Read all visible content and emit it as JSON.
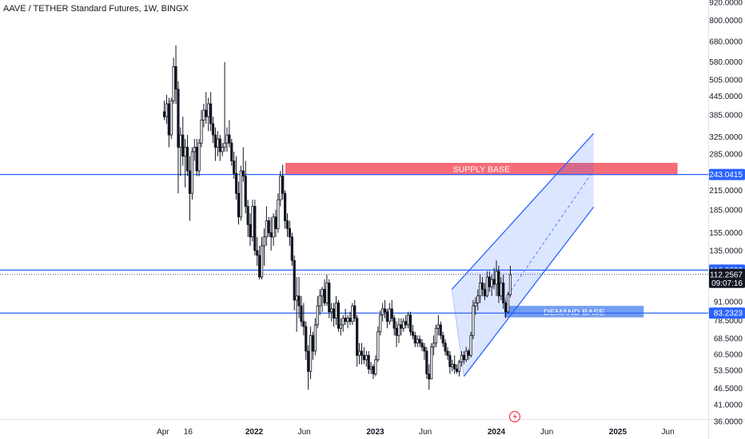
{
  "title": "AAVE / TETHER Standard Futures, 1W, BINGX",
  "chart_data": {
    "type": "candlestick",
    "symbol": "AAVE / TETHER Standard Futures",
    "interval": "1W",
    "exchange": "BINGX",
    "y_scale": "log",
    "ylim": [
      34,
      960
    ],
    "y_ticks": [
      "920.0000",
      "800.0000",
      "680.0000",
      "580.0000",
      "505.0000",
      "445.0000",
      "385.0000",
      "325.0000",
      "285.0000",
      "215.0000",
      "185.0000",
      "155.0000",
      "135.0000",
      "91.0000",
      "78.5000",
      "68.5000",
      "60.5000",
      "53.5000",
      "46.5000",
      "41.0000",
      "36.0000"
    ],
    "x_ticks": [
      "Apr",
      "16",
      "2022",
      "Jun",
      "2023",
      "Jun",
      "2024",
      "Jun",
      "2025",
      "Jun"
    ],
    "xlim": [
      "2021-03-10",
      "2025-07-20"
    ],
    "levels": [
      {
        "price": 243.0415,
        "label": "243.0415"
      },
      {
        "price": 116.0636,
        "label": "116.0636"
      },
      {
        "price": 83.2323,
        "label": "83.2323"
      }
    ],
    "last_price": {
      "price": 112.2567,
      "label": "112.2567",
      "countdown": "09:07:16"
    },
    "zones": [
      {
        "label": "SUPPLY BASE",
        "start": "2022-04-05",
        "end": "2025-06-30",
        "low": 242,
        "high": 266
      },
      {
        "label": "DEMAND BASE",
        "start": "2024-01-25",
        "end": "2025-03-20",
        "low": 80.5,
        "high": 88
      }
    ],
    "channel": {
      "upper": [
        [
          "2023-08-20",
          100
        ],
        [
          "2024-10-20",
          334
        ]
      ],
      "lower": [
        [
          "2023-09-25",
          51
        ],
        [
          "2024-10-20",
          189
        ]
      ],
      "middle": [
        [
          "2024-01-25",
          92
        ],
        [
          "2024-10-20",
          251
        ]
      ]
    },
    "candles": [
      {
        "t": "2021-04-05",
        "o": 395,
        "h": 430,
        "l": 370,
        "c": 380
      },
      {
        "t": "2021-04-12",
        "o": 380,
        "h": 450,
        "l": 360,
        "c": 420
      },
      {
        "t": "2021-04-19",
        "o": 420,
        "h": 440,
        "l": 300,
        "c": 330
      },
      {
        "t": "2021-04-26",
        "o": 330,
        "h": 440,
        "l": 320,
        "c": 430
      },
      {
        "t": "2021-05-03",
        "o": 430,
        "h": 600,
        "l": 420,
        "c": 560
      },
      {
        "t": "2021-05-10",
        "o": 560,
        "h": 660,
        "l": 420,
        "c": 470
      },
      {
        "t": "2021-05-17",
        "o": 470,
        "h": 500,
        "l": 210,
        "c": 300
      },
      {
        "t": "2021-05-24",
        "o": 300,
        "h": 350,
        "l": 240,
        "c": 330
      },
      {
        "t": "2021-05-31",
        "o": 330,
        "h": 380,
        "l": 260,
        "c": 280
      },
      {
        "t": "2021-06-07",
        "o": 280,
        "h": 320,
        "l": 220,
        "c": 300
      },
      {
        "t": "2021-06-14",
        "o": 300,
        "h": 330,
        "l": 240,
        "c": 250
      },
      {
        "t": "2021-06-21",
        "o": 250,
        "h": 280,
        "l": 170,
        "c": 210
      },
      {
        "t": "2021-06-28",
        "o": 210,
        "h": 300,
        "l": 200,
        "c": 290
      },
      {
        "t": "2021-07-05",
        "o": 290,
        "h": 320,
        "l": 270,
        "c": 300
      },
      {
        "t": "2021-07-12",
        "o": 300,
        "h": 320,
        "l": 240,
        "c": 250
      },
      {
        "t": "2021-07-19",
        "o": 250,
        "h": 320,
        "l": 240,
        "c": 310
      },
      {
        "t": "2021-07-26",
        "o": 310,
        "h": 400,
        "l": 300,
        "c": 370
      },
      {
        "t": "2021-08-02",
        "o": 370,
        "h": 420,
        "l": 350,
        "c": 400
      },
      {
        "t": "2021-08-09",
        "o": 400,
        "h": 460,
        "l": 360,
        "c": 380
      },
      {
        "t": "2021-08-16",
        "o": 380,
        "h": 440,
        "l": 340,
        "c": 420
      },
      {
        "t": "2021-08-23",
        "o": 420,
        "h": 460,
        "l": 340,
        "c": 360
      },
      {
        "t": "2021-08-30",
        "o": 360,
        "h": 380,
        "l": 310,
        "c": 330
      },
      {
        "t": "2021-09-06",
        "o": 330,
        "h": 350,
        "l": 270,
        "c": 300
      },
      {
        "t": "2021-09-13",
        "o": 300,
        "h": 340,
        "l": 280,
        "c": 320
      },
      {
        "t": "2021-09-20",
        "o": 320,
        "h": 330,
        "l": 270,
        "c": 290
      },
      {
        "t": "2021-09-27",
        "o": 290,
        "h": 310,
        "l": 280,
        "c": 300
      },
      {
        "t": "2021-10-04",
        "o": 300,
        "h": 580,
        "l": 290,
        "c": 310
      },
      {
        "t": "2021-10-11",
        "o": 310,
        "h": 350,
        "l": 290,
        "c": 330
      },
      {
        "t": "2021-10-18",
        "o": 330,
        "h": 370,
        "l": 300,
        "c": 310
      },
      {
        "t": "2021-10-25",
        "o": 310,
        "h": 320,
        "l": 260,
        "c": 270
      },
      {
        "t": "2021-11-01",
        "o": 270,
        "h": 290,
        "l": 235,
        "c": 245
      },
      {
        "t": "2021-11-08",
        "o": 245,
        "h": 280,
        "l": 200,
        "c": 210
      },
      {
        "t": "2021-11-15",
        "o": 210,
        "h": 230,
        "l": 165,
        "c": 175
      },
      {
        "t": "2021-11-22",
        "o": 175,
        "h": 260,
        "l": 170,
        "c": 250
      },
      {
        "t": "2021-11-29",
        "o": 250,
        "h": 300,
        "l": 230,
        "c": 240
      },
      {
        "t": "2021-12-06",
        "o": 240,
        "h": 270,
        "l": 180,
        "c": 190
      },
      {
        "t": "2021-12-13",
        "o": 190,
        "h": 200,
        "l": 150,
        "c": 165
      },
      {
        "t": "2021-12-20",
        "o": 165,
        "h": 180,
        "l": 140,
        "c": 150
      },
      {
        "t": "2021-12-27",
        "o": 150,
        "h": 200,
        "l": 145,
        "c": 190
      },
      {
        "t": "2022-01-03",
        "o": 190,
        "h": 200,
        "l": 130,
        "c": 135
      },
      {
        "t": "2022-01-10",
        "o": 135,
        "h": 150,
        "l": 120,
        "c": 130
      },
      {
        "t": "2022-01-17",
        "o": 130,
        "h": 140,
        "l": 108,
        "c": 110
      },
      {
        "t": "2022-01-24",
        "o": 110,
        "h": 150,
        "l": 108,
        "c": 140
      },
      {
        "t": "2022-01-31",
        "o": 140,
        "h": 160,
        "l": 120,
        "c": 150
      },
      {
        "t": "2022-02-07",
        "o": 150,
        "h": 190,
        "l": 140,
        "c": 170
      },
      {
        "t": "2022-02-14",
        "o": 170,
        "h": 175,
        "l": 150,
        "c": 155
      },
      {
        "t": "2022-02-21",
        "o": 155,
        "h": 175,
        "l": 135,
        "c": 150
      },
      {
        "t": "2022-02-28",
        "o": 150,
        "h": 180,
        "l": 140,
        "c": 175
      },
      {
        "t": "2022-03-07",
        "o": 175,
        "h": 185,
        "l": 150,
        "c": 160
      },
      {
        "t": "2022-03-14",
        "o": 160,
        "h": 210,
        "l": 155,
        "c": 200
      },
      {
        "t": "2022-03-21",
        "o": 200,
        "h": 250,
        "l": 190,
        "c": 240
      },
      {
        "t": "2022-03-28",
        "o": 240,
        "h": 262,
        "l": 200,
        "c": 210
      },
      {
        "t": "2022-04-04",
        "o": 210,
        "h": 215,
        "l": 160,
        "c": 170
      },
      {
        "t": "2022-04-11",
        "o": 170,
        "h": 180,
        "l": 150,
        "c": 160
      },
      {
        "t": "2022-04-18",
        "o": 160,
        "h": 170,
        "l": 140,
        "c": 150
      },
      {
        "t": "2022-04-25",
        "o": 150,
        "h": 155,
        "l": 120,
        "c": 125
      },
      {
        "t": "2022-05-02",
        "o": 125,
        "h": 130,
        "l": 85,
        "c": 92
      },
      {
        "t": "2022-05-09",
        "o": 92,
        "h": 110,
        "l": 72,
        "c": 95
      },
      {
        "t": "2022-05-16",
        "o": 95,
        "h": 110,
        "l": 80,
        "c": 88
      },
      {
        "t": "2022-05-23",
        "o": 88,
        "h": 95,
        "l": 75,
        "c": 78
      },
      {
        "t": "2022-05-30",
        "o": 78,
        "h": 90,
        "l": 70,
        "c": 75
      },
      {
        "t": "2022-06-06",
        "o": 75,
        "h": 78,
        "l": 58,
        "c": 62
      },
      {
        "t": "2022-06-13",
        "o": 62,
        "h": 65,
        "l": 46,
        "c": 53
      },
      {
        "t": "2022-06-20",
        "o": 53,
        "h": 75,
        "l": 50,
        "c": 70
      },
      {
        "t": "2022-06-27",
        "o": 70,
        "h": 72,
        "l": 58,
        "c": 62
      },
      {
        "t": "2022-07-04",
        "o": 62,
        "h": 80,
        "l": 60,
        "c": 76
      },
      {
        "t": "2022-07-11",
        "o": 76,
        "h": 95,
        "l": 74,
        "c": 88
      },
      {
        "t": "2022-07-18",
        "o": 88,
        "h": 100,
        "l": 82,
        "c": 95
      },
      {
        "t": "2022-07-25",
        "o": 95,
        "h": 102,
        "l": 84,
        "c": 100
      },
      {
        "t": "2022-08-01",
        "o": 100,
        "h": 108,
        "l": 88,
        "c": 90
      },
      {
        "t": "2022-08-08",
        "o": 90,
        "h": 112,
        "l": 88,
        "c": 105
      },
      {
        "t": "2022-08-15",
        "o": 105,
        "h": 108,
        "l": 80,
        "c": 84
      },
      {
        "t": "2022-08-22",
        "o": 84,
        "h": 90,
        "l": 78,
        "c": 86
      },
      {
        "t": "2022-08-29",
        "o": 86,
        "h": 90,
        "l": 75,
        "c": 80
      },
      {
        "t": "2022-09-05",
        "o": 80,
        "h": 95,
        "l": 76,
        "c": 90
      },
      {
        "t": "2022-09-12",
        "o": 90,
        "h": 92,
        "l": 72,
        "c": 74
      },
      {
        "t": "2022-09-19",
        "o": 74,
        "h": 80,
        "l": 70,
        "c": 76
      },
      {
        "t": "2022-09-26",
        "o": 76,
        "h": 82,
        "l": 72,
        "c": 80
      },
      {
        "t": "2022-10-03",
        "o": 80,
        "h": 86,
        "l": 76,
        "c": 78
      },
      {
        "t": "2022-10-10",
        "o": 78,
        "h": 82,
        "l": 74,
        "c": 80
      },
      {
        "t": "2022-10-17",
        "o": 80,
        "h": 84,
        "l": 76,
        "c": 78
      },
      {
        "t": "2022-10-24",
        "o": 78,
        "h": 90,
        "l": 76,
        "c": 88
      },
      {
        "t": "2022-10-31",
        "o": 88,
        "h": 92,
        "l": 78,
        "c": 80
      },
      {
        "t": "2022-11-07",
        "o": 80,
        "h": 82,
        "l": 55,
        "c": 60
      },
      {
        "t": "2022-11-14",
        "o": 60,
        "h": 66,
        "l": 56,
        "c": 62
      },
      {
        "t": "2022-11-21",
        "o": 62,
        "h": 66,
        "l": 56,
        "c": 60
      },
      {
        "t": "2022-11-28",
        "o": 60,
        "h": 64,
        "l": 56,
        "c": 58
      },
      {
        "t": "2022-12-05",
        "o": 58,
        "h": 62,
        "l": 55,
        "c": 60
      },
      {
        "t": "2022-12-12",
        "o": 60,
        "h": 62,
        "l": 52,
        "c": 54
      },
      {
        "t": "2022-12-19",
        "o": 54,
        "h": 57,
        "l": 52,
        "c": 55
      },
      {
        "t": "2022-12-26",
        "o": 55,
        "h": 56,
        "l": 50,
        "c": 52
      },
      {
        "t": "2023-01-02",
        "o": 52,
        "h": 60,
        "l": 51,
        "c": 58
      },
      {
        "t": "2023-01-09",
        "o": 58,
        "h": 75,
        "l": 57,
        "c": 72
      },
      {
        "t": "2023-01-16",
        "o": 72,
        "h": 85,
        "l": 70,
        "c": 82
      },
      {
        "t": "2023-01-23",
        "o": 82,
        "h": 90,
        "l": 78,
        "c": 86
      },
      {
        "t": "2023-01-30",
        "o": 86,
        "h": 92,
        "l": 80,
        "c": 84
      },
      {
        "t": "2023-02-06",
        "o": 84,
        "h": 86,
        "l": 74,
        "c": 78
      },
      {
        "t": "2023-02-13",
        "o": 78,
        "h": 90,
        "l": 76,
        "c": 86
      },
      {
        "t": "2023-02-20",
        "o": 86,
        "h": 92,
        "l": 78,
        "c": 80
      },
      {
        "t": "2023-02-27",
        "o": 80,
        "h": 82,
        "l": 70,
        "c": 74
      },
      {
        "t": "2023-03-06",
        "o": 74,
        "h": 78,
        "l": 64,
        "c": 70
      },
      {
        "t": "2023-03-13",
        "o": 70,
        "h": 80,
        "l": 66,
        "c": 76
      },
      {
        "t": "2023-03-20",
        "o": 76,
        "h": 80,
        "l": 70,
        "c": 74
      },
      {
        "t": "2023-03-27",
        "o": 74,
        "h": 80,
        "l": 72,
        "c": 78
      },
      {
        "t": "2023-04-03",
        "o": 78,
        "h": 82,
        "l": 74,
        "c": 76
      },
      {
        "t": "2023-04-10",
        "o": 76,
        "h": 84,
        "l": 74,
        "c": 82
      },
      {
        "t": "2023-04-17",
        "o": 82,
        "h": 84,
        "l": 70,
        "c": 72
      },
      {
        "t": "2023-04-24",
        "o": 72,
        "h": 76,
        "l": 68,
        "c": 70
      },
      {
        "t": "2023-05-01",
        "o": 70,
        "h": 72,
        "l": 64,
        "c": 66
      },
      {
        "t": "2023-05-08",
        "o": 66,
        "h": 70,
        "l": 64,
        "c": 68
      },
      {
        "t": "2023-05-15",
        "o": 68,
        "h": 70,
        "l": 64,
        "c": 66
      },
      {
        "t": "2023-05-22",
        "o": 66,
        "h": 68,
        "l": 62,
        "c": 64
      },
      {
        "t": "2023-05-29",
        "o": 64,
        "h": 66,
        "l": 58,
        "c": 62
      },
      {
        "t": "2023-06-05",
        "o": 62,
        "h": 64,
        "l": 50,
        "c": 52
      },
      {
        "t": "2023-06-12",
        "o": 52,
        "h": 56,
        "l": 46,
        "c": 50
      },
      {
        "t": "2023-06-19",
        "o": 50,
        "h": 66,
        "l": 50,
        "c": 64
      },
      {
        "t": "2023-06-26",
        "o": 64,
        "h": 70,
        "l": 60,
        "c": 66
      },
      {
        "t": "2023-07-03",
        "o": 66,
        "h": 76,
        "l": 64,
        "c": 74
      },
      {
        "t": "2023-07-10",
        "o": 74,
        "h": 82,
        "l": 70,
        "c": 76
      },
      {
        "t": "2023-07-17",
        "o": 76,
        "h": 78,
        "l": 68,
        "c": 70
      },
      {
        "t": "2023-07-24",
        "o": 70,
        "h": 72,
        "l": 64,
        "c": 66
      },
      {
        "t": "2023-07-31",
        "o": 66,
        "h": 68,
        "l": 60,
        "c": 62
      },
      {
        "t": "2023-08-07",
        "o": 62,
        "h": 64,
        "l": 58,
        "c": 60
      },
      {
        "t": "2023-08-14",
        "o": 60,
        "h": 62,
        "l": 52,
        "c": 55
      },
      {
        "t": "2023-08-21",
        "o": 55,
        "h": 58,
        "l": 53,
        "c": 56
      },
      {
        "t": "2023-08-28",
        "o": 56,
        "h": 60,
        "l": 52,
        "c": 54
      },
      {
        "t": "2023-09-04",
        "o": 54,
        "h": 56,
        "l": 52,
        "c": 53
      },
      {
        "t": "2023-09-11",
        "o": 53,
        "h": 58,
        "l": 51,
        "c": 57
      },
      {
        "t": "2023-09-18",
        "o": 57,
        "h": 62,
        "l": 55,
        "c": 60
      },
      {
        "t": "2023-09-25",
        "o": 60,
        "h": 62,
        "l": 56,
        "c": 58
      },
      {
        "t": "2023-10-02",
        "o": 58,
        "h": 64,
        "l": 57,
        "c": 62
      },
      {
        "t": "2023-10-09",
        "o": 62,
        "h": 63,
        "l": 58,
        "c": 60
      },
      {
        "t": "2023-10-16",
        "o": 60,
        "h": 72,
        "l": 59,
        "c": 70
      },
      {
        "t": "2023-10-23",
        "o": 70,
        "h": 92,
        "l": 68,
        "c": 88
      },
      {
        "t": "2023-10-30",
        "o": 88,
        "h": 94,
        "l": 82,
        "c": 90
      },
      {
        "t": "2023-11-06",
        "o": 90,
        "h": 100,
        "l": 85,
        "c": 95
      },
      {
        "t": "2023-11-13",
        "o": 95,
        "h": 112,
        "l": 90,
        "c": 105
      },
      {
        "t": "2023-11-20",
        "o": 105,
        "h": 110,
        "l": 95,
        "c": 100
      },
      {
        "t": "2023-11-27",
        "o": 100,
        "h": 105,
        "l": 92,
        "c": 95
      },
      {
        "t": "2023-12-04",
        "o": 95,
        "h": 115,
        "l": 94,
        "c": 110
      },
      {
        "t": "2023-12-11",
        "o": 110,
        "h": 115,
        "l": 98,
        "c": 102
      },
      {
        "t": "2023-12-18",
        "o": 102,
        "h": 112,
        "l": 95,
        "c": 108
      },
      {
        "t": "2023-12-25",
        "o": 108,
        "h": 118,
        "l": 100,
        "c": 104
      },
      {
        "t": "2024-01-01",
        "o": 104,
        "h": 125,
        "l": 95,
        "c": 115
      },
      {
        "t": "2024-01-08",
        "o": 115,
        "h": 120,
        "l": 90,
        "c": 95
      },
      {
        "t": "2024-01-15",
        "o": 95,
        "h": 110,
        "l": 92,
        "c": 105
      },
      {
        "t": "2024-01-22",
        "o": 105,
        "h": 112,
        "l": 86,
        "c": 90
      },
      {
        "t": "2024-01-29",
        "o": 90,
        "h": 92,
        "l": 80,
        "c": 84
      },
      {
        "t": "2024-02-05",
        "o": 84,
        "h": 98,
        "l": 83,
        "c": 96
      },
      {
        "t": "2024-02-12",
        "o": 96,
        "h": 120,
        "l": 94,
        "c": 112
      }
    ]
  }
}
